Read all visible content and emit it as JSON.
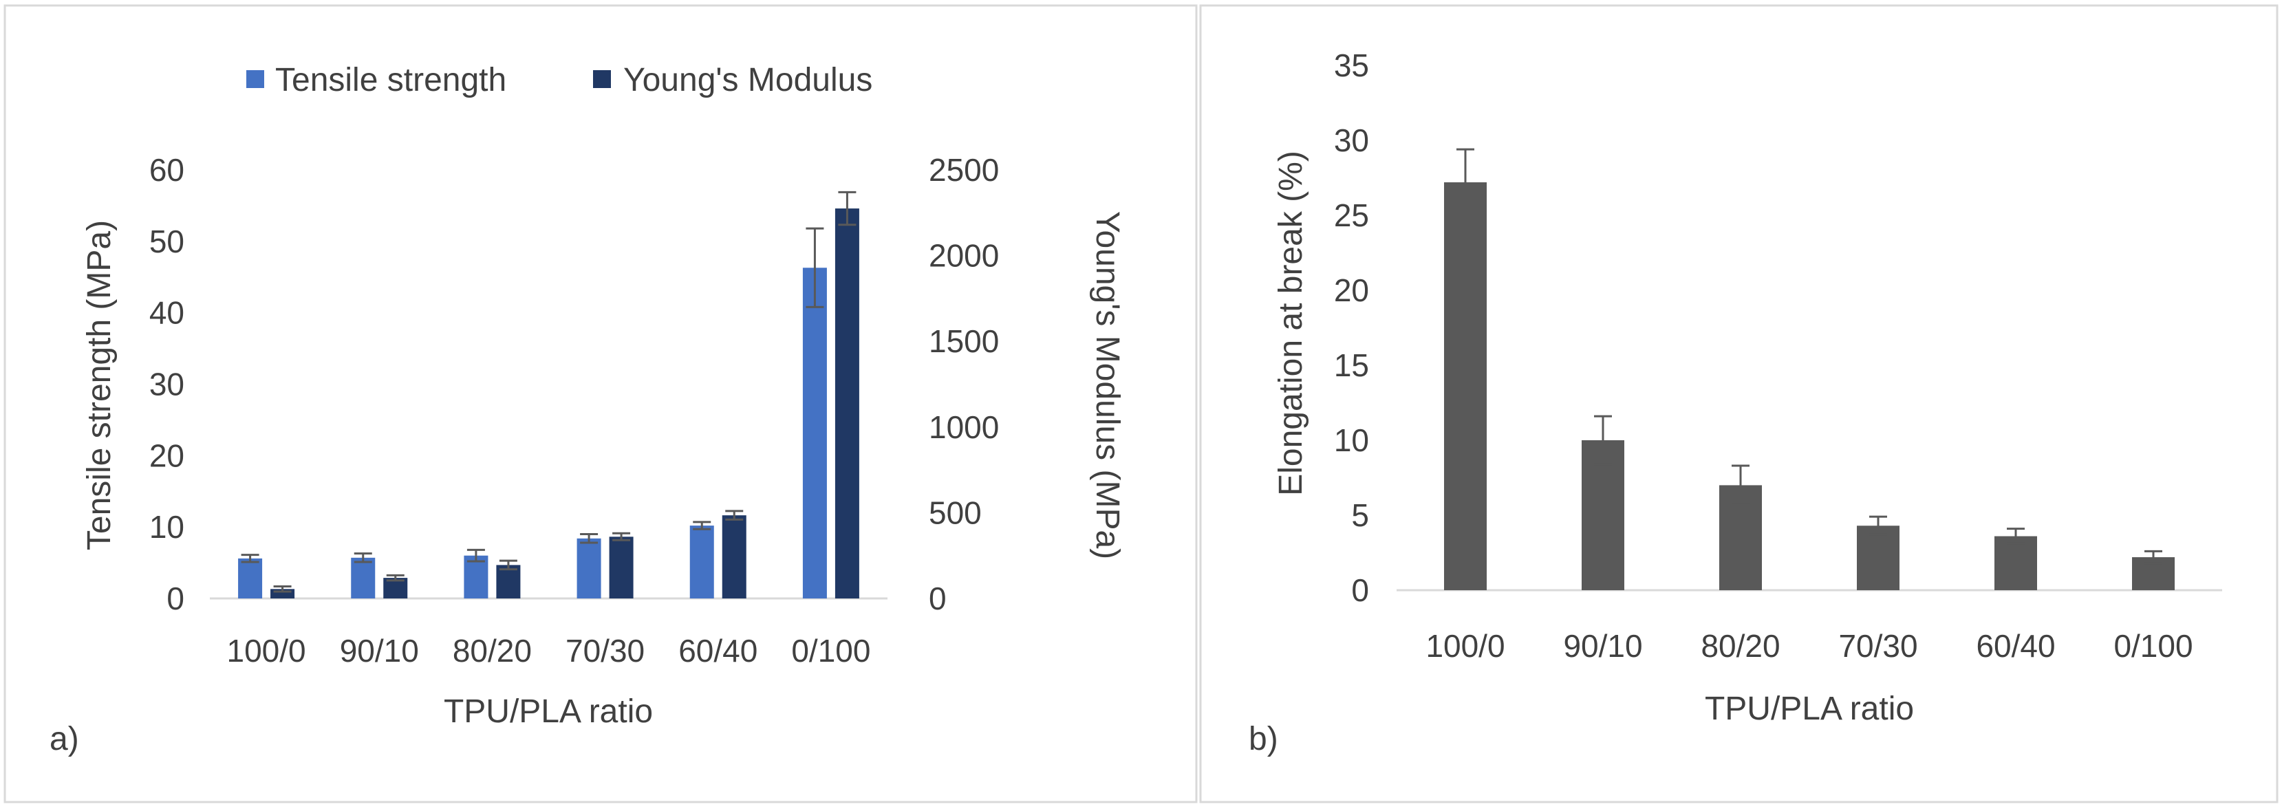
{
  "chart_data": [
    {
      "type": "bar",
      "panel_label": "a)",
      "categories": [
        "100/0",
        "90/10",
        "80/20",
        "70/30",
        "60/40",
        "0/100"
      ],
      "xlabel": "TPU/PLA ratio",
      "ylabel": "Tensile strength (MPa)",
      "ylabel_right": "Young's Modulus (MPa)",
      "ylim": [
        0,
        60
      ],
      "yticks": [
        0,
        10,
        20,
        30,
        40,
        50,
        60
      ],
      "ylim_right": [
        0,
        2500
      ],
      "yticks_right": [
        0,
        500,
        1000,
        1500,
        2000,
        2500
      ],
      "legend": "top",
      "grid": false,
      "series": [
        {
          "name": "Tensile strength",
          "axis": "left",
          "color": "#4472C4",
          "values": [
            5.6,
            5.7,
            6.0,
            8.4,
            10.2,
            46.3
          ],
          "errors": [
            0.5,
            0.6,
            0.8,
            0.6,
            0.5,
            5.5
          ]
        },
        {
          "name": "Young's Modulus",
          "axis": "right",
          "color": "#203864",
          "values": [
            55,
            120,
            195,
            360,
            485,
            2275
          ],
          "errors": [
            15,
            15,
            25,
            20,
            25,
            95
          ]
        }
      ]
    },
    {
      "type": "bar",
      "panel_label": "b)",
      "categories": [
        "100/0",
        "90/10",
        "80/20",
        "70/30",
        "60/40",
        "0/100"
      ],
      "xlabel": "TPU/PLA ratio",
      "ylabel": "Elongation at break (%)",
      "ylim": [
        0,
        35
      ],
      "yticks": [
        0,
        5,
        10,
        15,
        20,
        25,
        30,
        35
      ],
      "grid": false,
      "series": [
        {
          "color": "#595959",
          "values": [
            27.2,
            10.0,
            7.0,
            4.3,
            3.6,
            2.2
          ],
          "errors": [
            2.2,
            1.6,
            1.3,
            0.6,
            0.5,
            0.4
          ]
        }
      ]
    }
  ]
}
